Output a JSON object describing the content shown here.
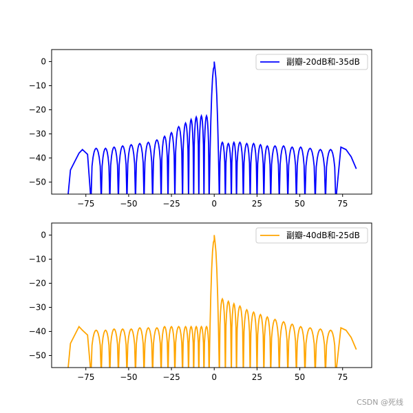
{
  "watermark": "CSDN @死线",
  "chart_data": [
    {
      "type": "line",
      "title": "",
      "xlabel": "",
      "ylabel": "",
      "xlim": [
        -95,
        92
      ],
      "ylim": [
        -55,
        5
      ],
      "xticks": [
        -75,
        -50,
        -25,
        0,
        25,
        50,
        75
      ],
      "yticks": [
        0,
        -10,
        -20,
        -30,
        -40,
        -50
      ],
      "grid": false,
      "legend_position": "top-right",
      "series": [
        {
          "name": "副瓣-20dB和-35dB",
          "color": "#0000ff",
          "left_peaks": [
            -36.5,
            -36,
            -36,
            -35.5,
            -35,
            -34.5,
            -34,
            -33.5,
            -32.5,
            -31,
            -29.5,
            -27,
            -25.5,
            -24,
            -23,
            -22.5
          ],
          "right_peaks": [
            -33.5,
            -34,
            -33.5,
            -33.5,
            -34,
            -34,
            -34.5,
            -35,
            -35,
            -35,
            -35.5,
            -35.5,
            -36,
            -36.5
          ],
          "edge_right": -44.5
        }
      ]
    },
    {
      "type": "line",
      "title": "",
      "xlabel": "",
      "ylabel": "",
      "xlim": [
        -95,
        92
      ],
      "ylim": [
        -55,
        5
      ],
      "xticks": [
        -75,
        -50,
        -25,
        0,
        25,
        50,
        75
      ],
      "yticks": [
        0,
        -10,
        -20,
        -30,
        -40,
        -50
      ],
      "grid": false,
      "legend_position": "top-right",
      "series": [
        {
          "name": "副瓣-40dB和-25dB",
          "color": "#ffa500",
          "left_peaks": [
            -39.5,
            -39.5,
            -39.5,
            -39,
            -39,
            -39,
            -38.5,
            -38.5,
            -38.5,
            -38,
            -38,
            -38,
            -38,
            -38,
            -38
          ],
          "right_peaks": [
            -26.5,
            -27.5,
            -28.5,
            -29.5,
            -31,
            -32,
            -33,
            -34,
            -35,
            -36,
            -37,
            -38,
            -38.5,
            -39,
            -39.5
          ],
          "edge_right": -47.5
        }
      ]
    }
  ]
}
